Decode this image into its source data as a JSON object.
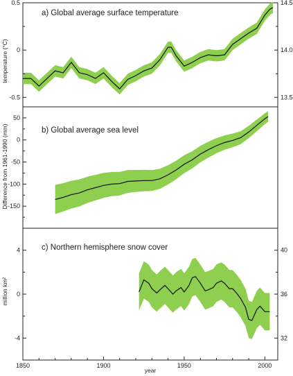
{
  "colors": {
    "band": "#8fcf4f",
    "line": "#111111",
    "frame": "#222222"
  },
  "xaxis": {
    "label": "year",
    "ticks": [
      1850,
      1900,
      1950,
      2000
    ],
    "lim": [
      1850,
      2008
    ]
  },
  "chart_data": [
    {
      "type": "area",
      "title": "a) Global average surface temperature",
      "ylabel": "temperature (°C)",
      "ylim": [
        -0.6,
        0.5
      ],
      "yticks": [
        -0.5,
        0,
        0.5
      ],
      "yticklabels": [
        "-0.5",
        "0",
        "0.5"
      ],
      "right_axis": {
        "label": "",
        "ticks": [
          13.5,
          14.0,
          14.5
        ],
        "offset": 14.0,
        "ticklabels": [
          "13.5",
          "14.0",
          "14.5"
        ]
      },
      "x": [
        1850,
        1855,
        1860,
        1865,
        1870,
        1875,
        1880,
        1885,
        1890,
        1895,
        1900,
        1905,
        1910,
        1915,
        1920,
        1925,
        1930,
        1935,
        1940,
        1942,
        1945,
        1950,
        1955,
        1960,
        1965,
        1970,
        1975,
        1980,
        1985,
        1990,
        1995,
        2000,
        2003,
        2005
      ],
      "y": [
        -0.3,
        -0.3,
        -0.38,
        -0.3,
        -0.22,
        -0.24,
        -0.13,
        -0.24,
        -0.26,
        -0.3,
        -0.24,
        -0.33,
        -0.41,
        -0.31,
        -0.27,
        -0.22,
        -0.19,
        -0.1,
        0.03,
        0.03,
        -0.06,
        -0.17,
        -0.13,
        -0.08,
        -0.05,
        -0.06,
        -0.05,
        0.06,
        0.12,
        0.18,
        0.23,
        0.37,
        0.43,
        0.45
      ],
      "band_halfwidth": 0.06
    },
    {
      "type": "area",
      "title": "b) Global average sea level",
      "ylabel": "Difference from 1961-1990 (mm)",
      "ylim": [
        -200,
        75
      ],
      "yticks": [
        -150,
        -100,
        -50,
        0,
        50
      ],
      "yticklabels": [
        "-150",
        "-100",
        "-50",
        "0",
        "50"
      ],
      "x": [
        1870,
        1875,
        1880,
        1885,
        1890,
        1895,
        1900,
        1905,
        1910,
        1915,
        1920,
        1925,
        1930,
        1935,
        1940,
        1945,
        1950,
        1955,
        1960,
        1965,
        1970,
        1975,
        1980,
        1985,
        1990,
        1995,
        2000,
        2002
      ],
      "y": [
        -135,
        -130,
        -124,
        -120,
        -113,
        -108,
        -103,
        -100,
        -99,
        -94,
        -93,
        -92,
        -92,
        -88,
        -79,
        -68,
        -55,
        -45,
        -32,
        -22,
        -13,
        -6,
        -1,
        5,
        18,
        33,
        48,
        53
      ],
      "band_halfwidth_start": 33,
      "band_halfwidth_end": 12
    },
    {
      "type": "area",
      "title": "c) Northern hemisphere snow cover",
      "ylabel": "million km²",
      "ylim": [
        -6,
        6
      ],
      "yticks": [
        -4,
        0,
        4
      ],
      "yticklabels": [
        "-4",
        "0",
        "4"
      ],
      "right_axis": {
        "label": "",
        "ticks": [
          32,
          36,
          40
        ],
        "offset": 36,
        "ticklabels": [
          "32",
          "36",
          "40"
        ]
      },
      "x": [
        1922,
        1925,
        1928,
        1930,
        1933,
        1935,
        1938,
        1940,
        1943,
        1945,
        1948,
        1950,
        1953,
        1955,
        1957,
        1960,
        1963,
        1965,
        1968,
        1970,
        1973,
        1975,
        1978,
        1980,
        1983,
        1985,
        1988,
        1990,
        1992,
        1995,
        1997,
        2000,
        2003
      ],
      "y": [
        0.2,
        1.3,
        1.0,
        0.5,
        0.1,
        0.4,
        0.8,
        0.5,
        0.0,
        0.3,
        0.6,
        0.2,
        0.8,
        1.5,
        1.6,
        1.0,
        0.3,
        0.4,
        0.6,
        1.0,
        1.2,
        1.0,
        0.5,
        0.5,
        0.0,
        -0.4,
        -1.2,
        -2.3,
        -2.4,
        -1.4,
        -1.1,
        -1.6,
        -1.6
      ],
      "band_halfwidth": 1.7
    }
  ]
}
